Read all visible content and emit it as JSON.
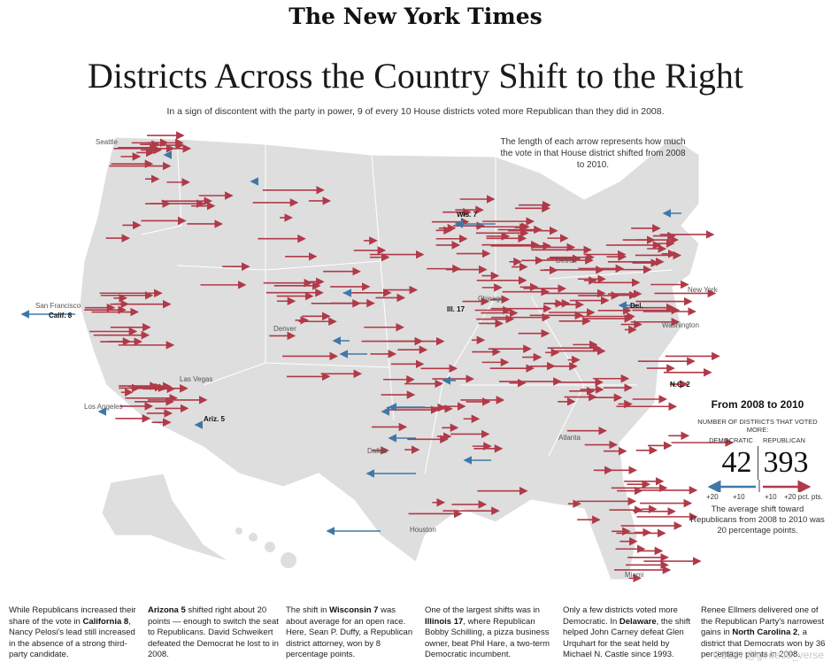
{
  "masthead": "The New York Times",
  "headline": "Districts Across the Country Shift to the Right",
  "dek": "In a sign of discontent with the party in power, 9 of every 10 House districts voted more Republican than they did in 2008.",
  "explainer": "The length of each arrow represents how much the vote in that House district shifted from 2008 to 2010.",
  "map_labels": {
    "cities": [
      "Seattle",
      "San Francisco",
      "Los Angeles",
      "Las Vegas",
      "Denver",
      "Dallas",
      "Houston",
      "Chicago",
      "Detroit",
      "Atlanta",
      "Miami",
      "Washington",
      "New York"
    ],
    "districts": [
      "Calif. 8",
      "Ariz. 5",
      "Wis. 7",
      "Ill. 17",
      "Del.",
      "N.C. 2"
    ]
  },
  "legend": {
    "title": "From 2008 to 2010",
    "subtitle": "NUMBER OF DISTRICTS THAT VOTED MORE:",
    "dem_label": "DEMOCRATIC",
    "rep_label": "REPUBLICAN",
    "dem_count": "42",
    "rep_count": "393",
    "dem_scale_1": "+20",
    "dem_scale_2": "+10",
    "rep_scale_1": "+10",
    "rep_scale_2": "+20 pct. pts.",
    "average_note": "The average shift toward Republicans from 2008 to 2010 was 20 percentage points."
  },
  "colors": {
    "republican": "#b03a48",
    "democratic": "#3f78a8",
    "land": "#dedede"
  },
  "captions": [
    {
      "pre": "While Republicans increased their share of the vote in ",
      "bold": "California 8",
      "post": ", Nancy Pelosi's lead still increased in the absence of a strong third-party candidate."
    },
    {
      "pre": "",
      "bold": "Arizona 5",
      "post": " shifted right about 20 points — enough to switch the seat to Republicans. David Schweikert defeated the Democrat he lost to in 2008."
    },
    {
      "pre": "The shift in ",
      "bold": "Wisconsin 7",
      "post": " was about average for an open race. Here, Sean P. Duffy, a Republican district attorney, won by 8 percentage points."
    },
    {
      "pre": "One of the largest shifts was in ",
      "bold": "Illinois 17",
      "post": ", where Republican Bobby Schilling, a pizza business owner, beat Phil Hare, a two-term Democratic incumbent."
    },
    {
      "pre": "Only a few districts voted more Democratic. In ",
      "bold": "Delaware",
      "post": ", the shift helped John Carney defeat Glen Urquhart for the seat held by Michael N. Castle since 1993."
    },
    {
      "pre": "Renee Ellmers delivered one of the Republican Party's narrowest gains in ",
      "bold": "North Carolina 2",
      "post": ", a district that Democrats won by 36 percentage points in 2008."
    }
  ],
  "watermark": "CSDN @geoedu_verse"
}
